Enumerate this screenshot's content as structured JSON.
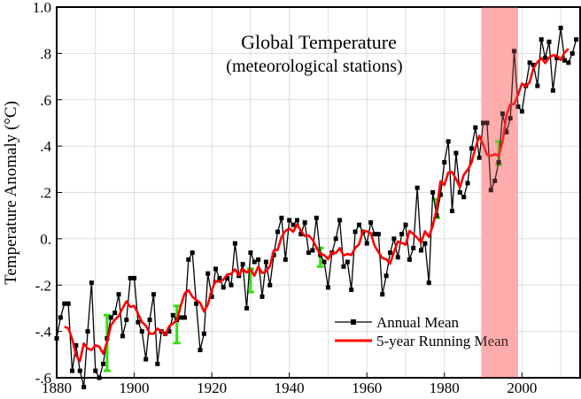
{
  "chart_data": {
    "type": "line",
    "title": "Global Temperature",
    "subtitle": "(meteorological stations)",
    "xlabel": "",
    "ylabel": "Temperature Anomaly (°C)",
    "xlim": [
      1880,
      2015
    ],
    "ylim": [
      -0.6,
      1.0
    ],
    "grid": true,
    "x_ticks": [
      1880,
      1900,
      1920,
      1940,
      1960,
      1980,
      2000
    ],
    "x_tick_labels": [
      "1880",
      "1900",
      "1920",
      "1940",
      "1960",
      "1980",
      "2000"
    ],
    "y_ticks": [
      -0.6,
      -0.4,
      -0.2,
      0,
      0.2,
      0.4,
      0.6,
      0.8,
      1.0
    ],
    "y_tick_labels": [
      "-.6",
      "-.4",
      "-.2",
      "0.",
      ".2",
      ".4",
      ".6",
      ".8",
      "1.0"
    ],
    "legend_position": "bottom-right",
    "colors": {
      "annual": "#000000",
      "running": "#ff0000",
      "error_bar": "#33dd11",
      "highlight": "#ffb8b8"
    },
    "highlight_band": [
      1989.5,
      1999
    ],
    "series": [
      {
        "name": "Annual Mean",
        "start_year": 1880,
        "values": [
          -0.43,
          -0.34,
          -0.28,
          -0.28,
          -0.57,
          -0.46,
          -0.57,
          -0.64,
          -0.4,
          -0.19,
          -0.57,
          -0.6,
          -0.54,
          -0.43,
          -0.34,
          -0.32,
          -0.24,
          -0.42,
          -0.35,
          -0.17,
          -0.17,
          -0.36,
          -0.4,
          -0.52,
          -0.35,
          -0.24,
          -0.54,
          -0.4,
          -0.41,
          -0.4,
          -0.33,
          -0.35,
          -0.34,
          -0.34,
          -0.09,
          -0.06,
          -0.28,
          -0.48,
          -0.41,
          -0.15,
          -0.25,
          -0.13,
          -0.17,
          -0.21,
          -0.17,
          -0.2,
          -0.02,
          -0.16,
          -0.11,
          -0.3,
          -0.06,
          -0.1,
          -0.09,
          -0.25,
          -0.1,
          -0.2,
          -0.07,
          0.03,
          0.09,
          -0.09,
          0.08,
          0.06,
          0.08,
          0.02,
          0.07,
          -0.06,
          -0.05,
          0.09,
          -0.07,
          -0.1,
          -0.21,
          -0.06,
          0.0,
          0.08,
          -0.12,
          -0.1,
          -0.22,
          0.03,
          0.06,
          0.03,
          -0.02,
          0.07,
          0.02,
          0.02,
          -0.24,
          -0.16,
          -0.06,
          0.0,
          -0.08,
          0.02,
          0.06,
          -0.09,
          -0.04,
          0.22,
          -0.05,
          -0.02,
          -0.19,
          0.2,
          0.1,
          0.19,
          0.33,
          0.42,
          0.12,
          0.37,
          0.2,
          0.18,
          0.24,
          0.39,
          0.48,
          0.35,
          0.5,
          0.5,
          0.21,
          0.25,
          0.33,
          0.54,
          0.46,
          0.52,
          0.81,
          0.57,
          0.55,
          0.66,
          0.76,
          0.75,
          0.66,
          0.86,
          0.78,
          0.85,
          0.64,
          0.78,
          0.91,
          0.77,
          0.76,
          0.8,
          0.86
        ]
      },
      {
        "name": "5-year Running Mean",
        "window": 5
      }
    ],
    "error_bars": [
      {
        "year": 1893,
        "center": -0.45,
        "half_width": 0.12
      },
      {
        "year": 1911,
        "center": -0.37,
        "half_width": 0.08
      },
      {
        "year": 1930,
        "center": -0.18,
        "half_width": 0.05
      },
      {
        "year": 1948,
        "center": -0.08,
        "half_width": 0.04
      },
      {
        "year": 1978,
        "center": 0.13,
        "half_width": 0.04
      },
      {
        "year": 1994,
        "center": 0.37,
        "half_width": 0.05
      }
    ]
  }
}
